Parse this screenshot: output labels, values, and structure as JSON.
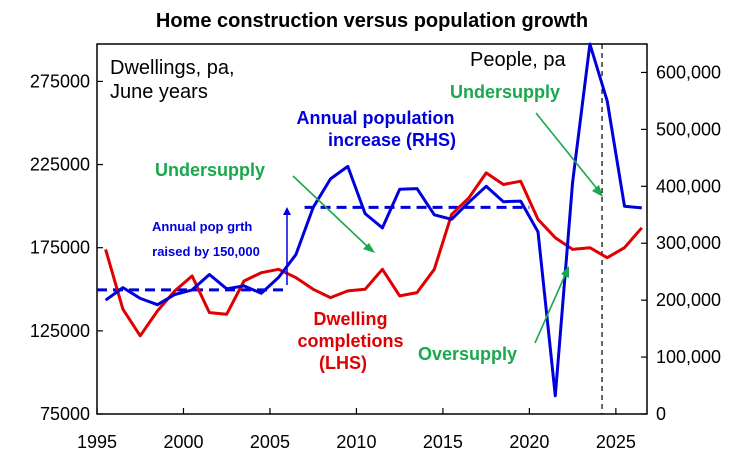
{
  "chart_data": {
    "type": "line",
    "title": "Home construction versus population growth",
    "left_axis_label": [
      "Dwellings, pa,",
      "June years"
    ],
    "right_axis_label": "People, pa",
    "x_ticks": [
      "1995",
      "2000",
      "2005",
      "2010",
      "2015",
      "2020",
      "2025"
    ],
    "x_range": [
      1995,
      2026.8
    ],
    "y_left_ticks": [
      "75000",
      "125000",
      "175000",
      "225000",
      "275000"
    ],
    "y_left_range": [
      75000,
      297500
    ],
    "y_right_ticks": [
      "0",
      "100,000",
      "200,000",
      "300,000",
      "400,000",
      "500,000",
      "600,000"
    ],
    "y_right_range": [
      0,
      650000
    ],
    "colors": {
      "population": "#0000dd",
      "dwellings": "#e00000",
      "annotation": "#19a84b",
      "axis": "#000000"
    },
    "series": [
      {
        "name": "Annual population increase (RHS)",
        "axis": "right",
        "color": "#0000dd",
        "x": [
          1995.5,
          1996.5,
          1997.5,
          1998.5,
          1999.5,
          2000.5,
          2001.5,
          2002.5,
          2003.5,
          2004.5,
          2005.5,
          2006.5,
          2007.5,
          2008.5,
          2009.5,
          2010.5,
          2011.5,
          2012.5,
          2013.5,
          2014.5,
          2015.5,
          2016.5,
          2017.5,
          2018.5,
          2019.5,
          2020.5,
          2021.5,
          2022.5,
          2023.5,
          2024.5,
          2025.5,
          2026.5
        ],
        "values": [
          200000,
          222000,
          203000,
          192000,
          210000,
          218000,
          245000,
          220000,
          225000,
          212000,
          240000,
          280000,
          363000,
          413000,
          435000,
          352000,
          327000,
          395000,
          396000,
          350000,
          342000,
          372000,
          400000,
          373000,
          374000,
          320000,
          32000,
          407000,
          650000,
          550000,
          365000,
          362000
        ]
      },
      {
        "name": "Dwelling completions (LHS)",
        "axis": "left",
        "color": "#e00000",
        "x": [
          1995.5,
          1996.5,
          1997.5,
          1998.5,
          1999.5,
          2000.5,
          2001.5,
          2002.5,
          2003.5,
          2004.5,
          2005.5,
          2006.5,
          2007.5,
          2008.5,
          2009.5,
          2010.5,
          2011.5,
          2012.5,
          2013.5,
          2014.5,
          2015.5,
          2016.5,
          2017.5,
          2018.5,
          2019.5,
          2020.5,
          2021.5,
          2022.5,
          2023.5,
          2024.5,
          2025.5,
          2026.5
        ],
        "values": [
          174000,
          138000,
          122000,
          137000,
          149000,
          158000,
          136000,
          135000,
          155000,
          160000,
          162000,
          157000,
          150000,
          145000,
          149000,
          150000,
          162000,
          146000,
          148000,
          162000,
          195000,
          205000,
          220000,
          213000,
          215000,
          192000,
          181000,
          174000,
          175000,
          169000,
          175000,
          187000
        ]
      }
    ],
    "reference_lines": [
      {
        "axis": "right",
        "x": [
          1995,
          2006
        ],
        "value": 218000,
        "style": "dashed"
      },
      {
        "axis": "right",
        "x": [
          2007,
          2020
        ],
        "value": 363000,
        "style": "dashed"
      }
    ],
    "vertical_marker": {
      "x": 2024.2,
      "style": "dashed"
    },
    "annotations": {
      "population_label": [
        "Annual population",
        "increase (RHS)"
      ],
      "dwelling_label": [
        "Dwelling",
        "completions",
        "(LHS)"
      ],
      "pop_shift_label": [
        "Annual pop grth",
        "raised by 150,000"
      ],
      "undersupply_1": "Undersupply",
      "undersupply_2": "Undersupply",
      "oversupply": "Oversupply"
    }
  }
}
